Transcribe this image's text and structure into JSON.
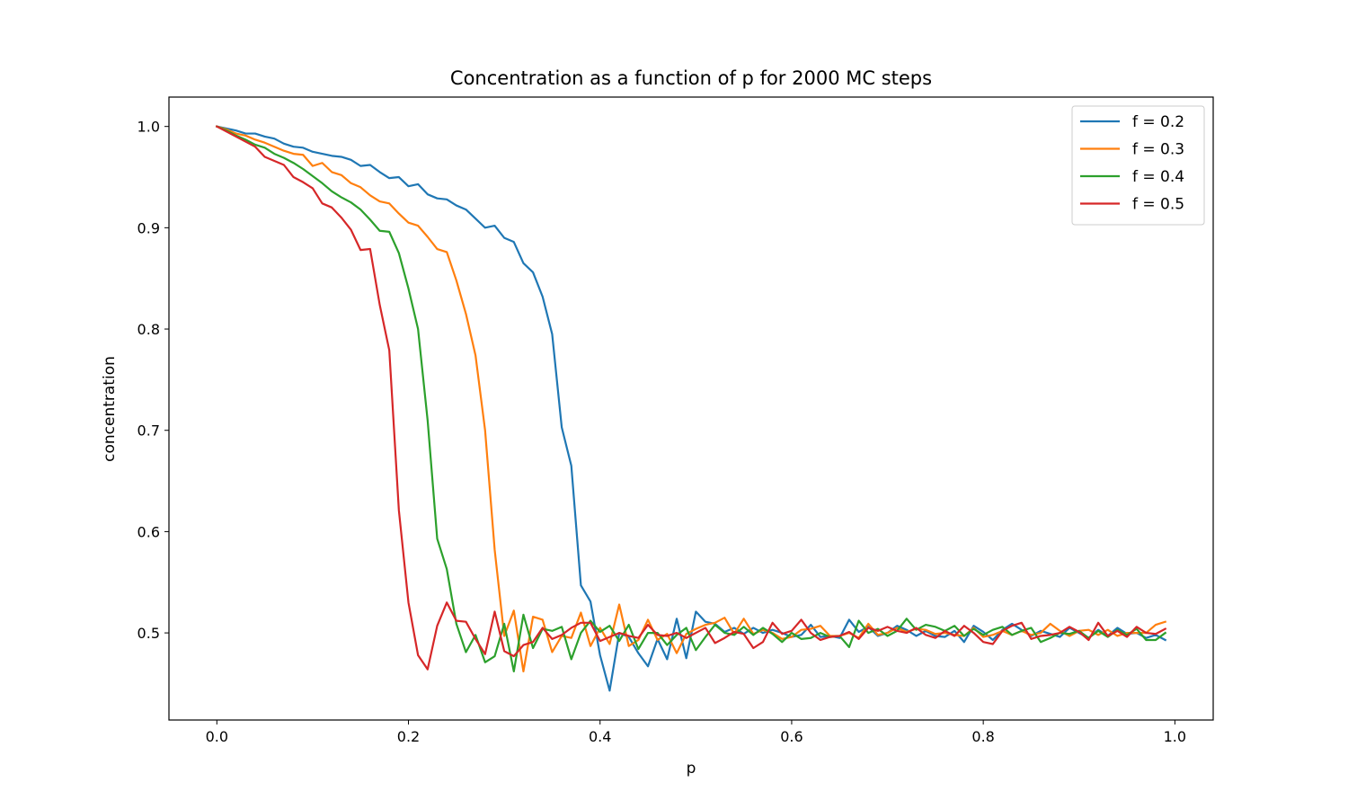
{
  "chart_data": {
    "type": "line",
    "title": "Concentration as a function of p for 2000 MC steps",
    "xlabel": "p",
    "ylabel": "concentration",
    "xlim": [
      -0.05,
      1.04
    ],
    "ylim": [
      0.414,
      1.029
    ],
    "xticks": [
      0.0,
      0.2,
      0.4,
      0.6,
      0.8,
      1.0
    ],
    "xtick_labels": [
      "0.0",
      "0.2",
      "0.4",
      "0.6",
      "0.8",
      "1.0"
    ],
    "yticks": [
      0.5,
      0.6,
      0.7,
      0.8,
      0.9,
      1.0
    ],
    "ytick_labels": [
      "0.5",
      "0.6",
      "0.7",
      "0.8",
      "0.9",
      "1.0"
    ],
    "grid": false,
    "legend_position": "top-right",
    "x_start": 0.0,
    "x_step": 0.01,
    "series": [
      {
        "name": "f = 0.2",
        "color": "#1f77b4",
        "values": [
          1.0,
          0.998,
          0.996,
          0.993,
          0.993,
          0.99,
          0.988,
          0.983,
          0.98,
          0.979,
          0.975,
          0.973,
          0.971,
          0.97,
          0.967,
          0.961,
          0.962,
          0.955,
          0.949,
          0.95,
          0.941,
          0.943,
          0.933,
          0.929,
          0.928,
          0.922,
          0.918,
          0.909,
          0.9,
          0.902,
          0.89,
          0.886,
          0.865,
          0.856,
          0.832,
          0.795,
          0.703,
          0.665,
          0.547,
          0.531,
          0.478,
          0.443,
          0.5,
          0.496,
          0.48,
          0.467,
          0.494,
          0.474,
          0.514,
          0.475,
          0.521,
          0.511,
          0.509,
          0.501,
          0.505,
          0.499,
          0.505,
          0.5,
          0.503,
          0.5,
          0.496,
          0.498,
          0.508,
          0.496,
          0.497,
          0.495,
          0.513,
          0.501,
          0.506,
          0.497,
          0.5,
          0.507,
          0.503,
          0.497,
          0.502,
          0.497,
          0.496,
          0.502,
          0.491,
          0.507,
          0.501,
          0.493,
          0.503,
          0.509,
          0.503,
          0.497,
          0.502,
          0.499,
          0.496,
          0.505,
          0.5,
          0.495,
          0.503,
          0.497,
          0.505,
          0.499,
          0.5,
          0.495,
          0.498,
          0.493
        ]
      },
      {
        "name": "f = 0.3",
        "color": "#ff7f0e",
        "values": [
          1.0,
          0.997,
          0.993,
          0.991,
          0.987,
          0.984,
          0.98,
          0.976,
          0.973,
          0.972,
          0.961,
          0.964,
          0.955,
          0.952,
          0.944,
          0.94,
          0.932,
          0.926,
          0.924,
          0.914,
          0.905,
          0.902,
          0.891,
          0.879,
          0.876,
          0.848,
          0.815,
          0.774,
          0.7,
          0.582,
          0.497,
          0.522,
          0.462,
          0.516,
          0.513,
          0.481,
          0.497,
          0.495,
          0.52,
          0.487,
          0.505,
          0.489,
          0.528,
          0.487,
          0.493,
          0.513,
          0.493,
          0.499,
          0.48,
          0.499,
          0.504,
          0.508,
          0.51,
          0.515,
          0.499,
          0.514,
          0.499,
          0.503,
          0.5,
          0.494,
          0.496,
          0.503,
          0.504,
          0.507,
          0.497,
          0.497,
          0.5,
          0.495,
          0.509,
          0.498,
          0.5,
          0.505,
          0.501,
          0.504,
          0.503,
          0.499,
          0.5,
          0.498,
          0.497,
          0.505,
          0.496,
          0.498,
          0.502,
          0.498,
          0.502,
          0.498,
          0.5,
          0.509,
          0.502,
          0.497,
          0.502,
          0.503,
          0.498,
          0.503,
          0.497,
          0.5,
          0.5,
          0.5,
          0.508,
          0.511
        ]
      },
      {
        "name": "f = 0.4",
        "color": "#2ca02c",
        "values": [
          1.0,
          0.996,
          0.991,
          0.987,
          0.982,
          0.979,
          0.973,
          0.969,
          0.964,
          0.958,
          0.951,
          0.944,
          0.936,
          0.93,
          0.925,
          0.918,
          0.908,
          0.897,
          0.896,
          0.875,
          0.84,
          0.8,
          0.71,
          0.593,
          0.563,
          0.509,
          0.481,
          0.498,
          0.471,
          0.477,
          0.509,
          0.462,
          0.518,
          0.485,
          0.504,
          0.502,
          0.506,
          0.474,
          0.5,
          0.512,
          0.501,
          0.507,
          0.492,
          0.508,
          0.484,
          0.5,
          0.5,
          0.488,
          0.498,
          0.505,
          0.483,
          0.496,
          0.508,
          0.5,
          0.498,
          0.506,
          0.498,
          0.505,
          0.499,
          0.491,
          0.5,
          0.494,
          0.495,
          0.5,
          0.496,
          0.497,
          0.486,
          0.512,
          0.5,
          0.504,
          0.497,
          0.502,
          0.514,
          0.503,
          0.508,
          0.506,
          0.502,
          0.507,
          0.497,
          0.504,
          0.498,
          0.503,
          0.506,
          0.498,
          0.502,
          0.505,
          0.491,
          0.495,
          0.5,
          0.499,
          0.502,
          0.495,
          0.502,
          0.496,
          0.503,
          0.498,
          0.504,
          0.493,
          0.493,
          0.5
        ]
      },
      {
        "name": "f = 0.5",
        "color": "#d62728",
        "values": [
          1.0,
          0.995,
          0.99,
          0.985,
          0.98,
          0.97,
          0.966,
          0.962,
          0.95,
          0.945,
          0.939,
          0.924,
          0.92,
          0.91,
          0.898,
          0.878,
          0.879,
          0.824,
          0.779,
          0.621,
          0.53,
          0.478,
          0.464,
          0.507,
          0.53,
          0.512,
          0.511,
          0.494,
          0.479,
          0.521,
          0.482,
          0.477,
          0.488,
          0.491,
          0.505,
          0.494,
          0.498,
          0.505,
          0.51,
          0.51,
          0.492,
          0.496,
          0.5,
          0.497,
          0.495,
          0.508,
          0.498,
          0.497,
          0.5,
          0.495,
          0.5,
          0.505,
          0.49,
          0.495,
          0.501,
          0.499,
          0.485,
          0.491,
          0.51,
          0.499,
          0.502,
          0.513,
          0.5,
          0.493,
          0.496,
          0.497,
          0.501,
          0.494,
          0.505,
          0.502,
          0.506,
          0.502,
          0.5,
          0.505,
          0.498,
          0.495,
          0.502,
          0.497,
          0.507,
          0.5,
          0.491,
          0.489,
          0.502,
          0.507,
          0.51,
          0.494,
          0.497,
          0.498,
          0.5,
          0.506,
          0.501,
          0.493,
          0.51,
          0.497,
          0.502,
          0.496,
          0.506,
          0.5,
          0.499,
          0.504
        ]
      }
    ]
  }
}
